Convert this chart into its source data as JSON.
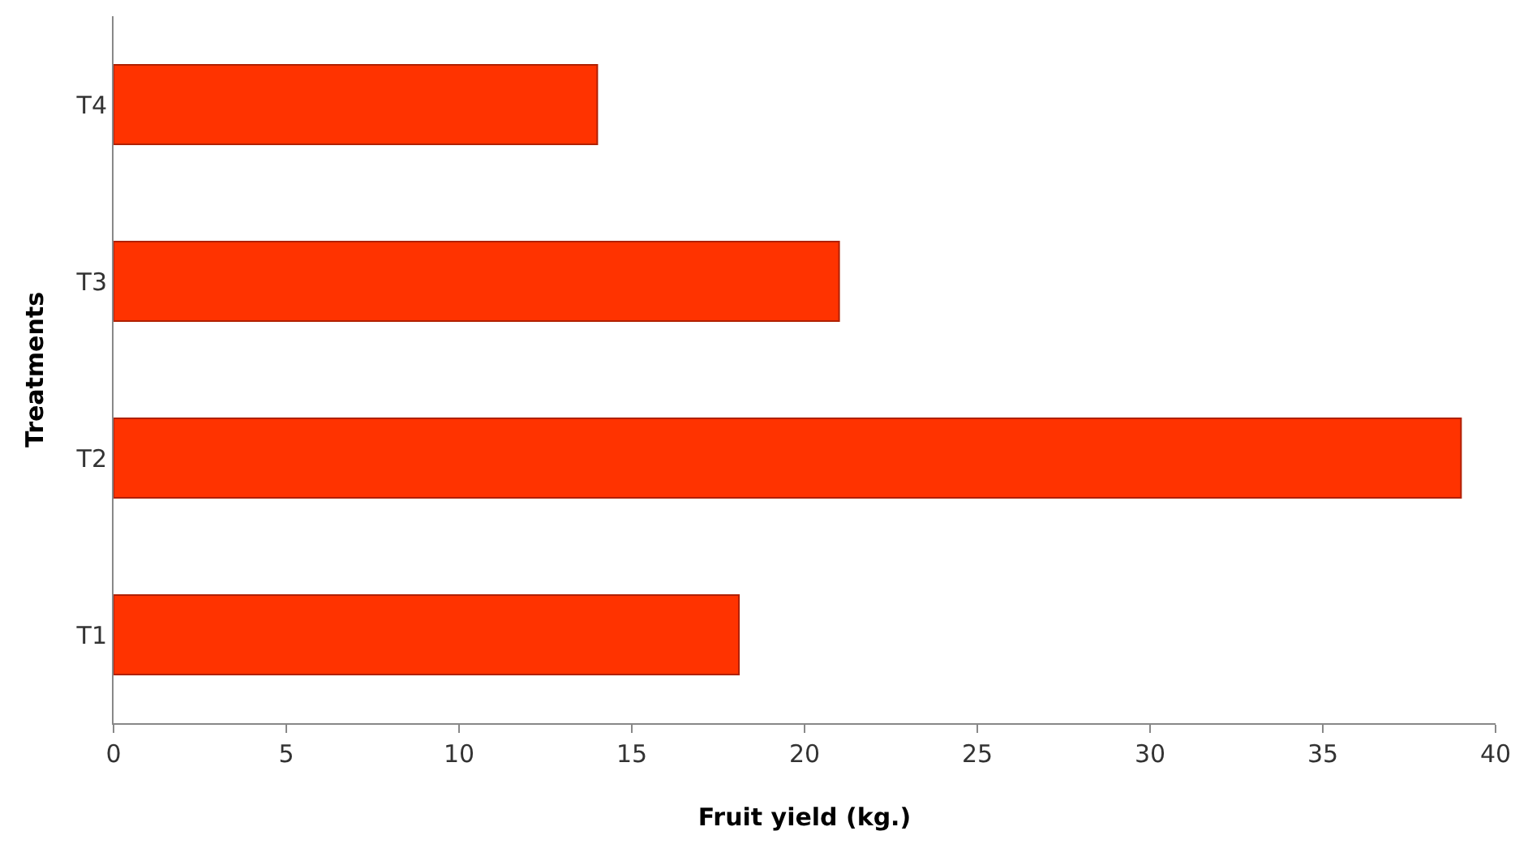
{
  "chart_data": {
    "type": "bar",
    "orientation": "horizontal",
    "xlabel": "Fruit yield (kg.)",
    "ylabel": "Treatments",
    "categories": [
      "T4",
      "T3",
      "T2",
      "T1"
    ],
    "values": [
      14,
      21,
      39,
      18.1
    ],
    "color": "#ff3300",
    "xlim": [
      0,
      40
    ],
    "xticks": [
      0,
      5,
      10,
      15,
      20,
      25,
      30,
      35,
      40
    ]
  }
}
